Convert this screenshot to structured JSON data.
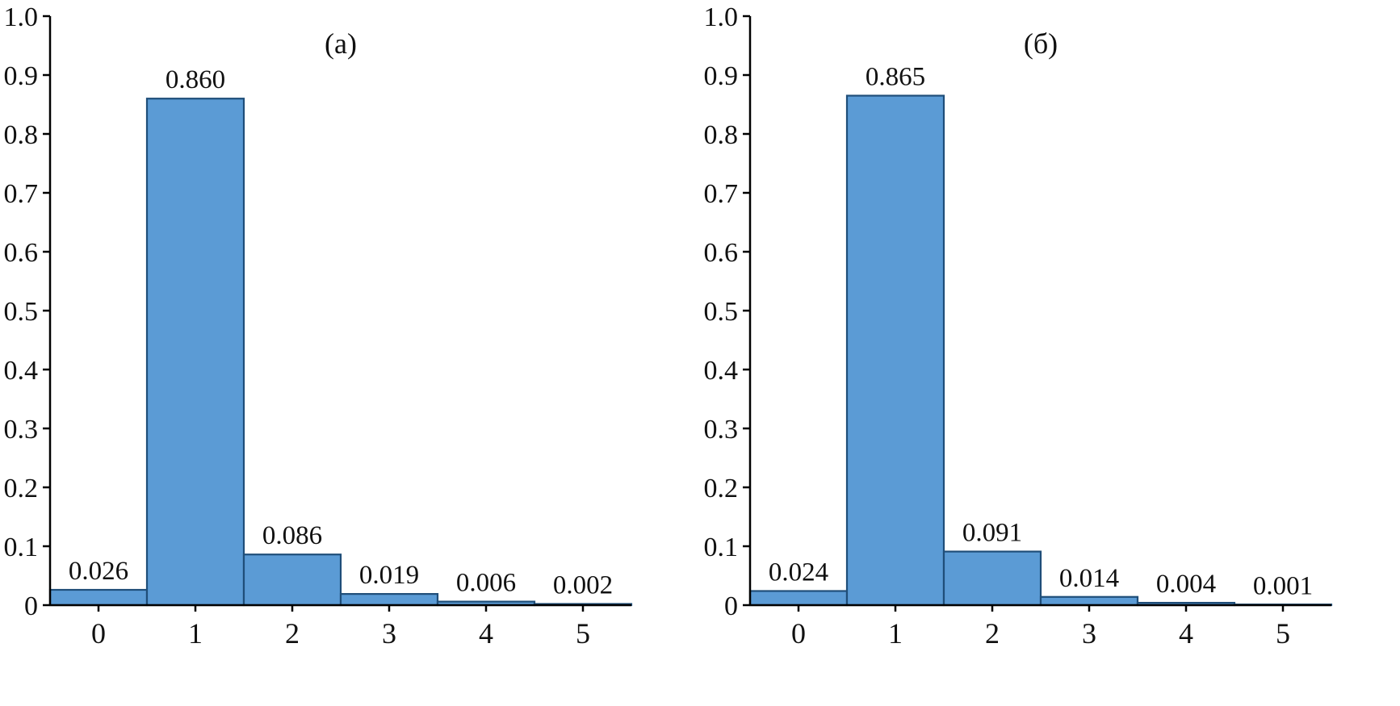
{
  "figure": {
    "background": "#ffffff",
    "text_color": "#111111"
  },
  "chart_data": [
    {
      "id": "a",
      "type": "bar",
      "title": "(а)",
      "categories": [
        "0",
        "1",
        "2",
        "3",
        "4",
        "5"
      ],
      "values": [
        0.026,
        0.86,
        0.086,
        0.019,
        0.006,
        0.002
      ],
      "value_labels": [
        "0.026",
        "0.860",
        "0.086",
        "0.019",
        "0.006",
        "0.002"
      ],
      "xlabel": "",
      "ylabel": "",
      "ylim": [
        0,
        1.0
      ],
      "yticks": [
        0,
        0.1,
        0.2,
        0.3,
        0.4,
        0.5,
        0.6,
        0.7,
        0.8,
        0.9,
        1.0
      ],
      "ytick_labels": [
        "0",
        "0.1",
        "0.2",
        "0.3",
        "0.4",
        "0.5",
        "0.6",
        "0.7",
        "0.8",
        "0.9",
        "1.0"
      ],
      "grid": false,
      "legend": null,
      "bar_width": 1.0,
      "bar_fill": "#5b9bd5",
      "bar_edge": "#1f4e79",
      "axis_color": "#000000"
    },
    {
      "id": "b",
      "type": "bar",
      "title": "(б)",
      "categories": [
        "0",
        "1",
        "2",
        "3",
        "4",
        "5"
      ],
      "values": [
        0.024,
        0.865,
        0.091,
        0.014,
        0.004,
        0.001
      ],
      "value_labels": [
        "0.024",
        "0.865",
        "0.091",
        "0.014",
        "0.004",
        "0.001"
      ],
      "xlabel": "",
      "ylabel": "",
      "ylim": [
        0,
        1.0
      ],
      "yticks": [
        0,
        0.1,
        0.2,
        0.3,
        0.4,
        0.5,
        0.6,
        0.7,
        0.8,
        0.9,
        1.0
      ],
      "ytick_labels": [
        "0",
        "0.1",
        "0.2",
        "0.3",
        "0.4",
        "0.5",
        "0.6",
        "0.7",
        "0.8",
        "0.9",
        "1.0"
      ],
      "grid": false,
      "legend": null,
      "bar_width": 1.0,
      "bar_fill": "#5b9bd5",
      "bar_edge": "#1f4e79",
      "axis_color": "#000000"
    }
  ]
}
